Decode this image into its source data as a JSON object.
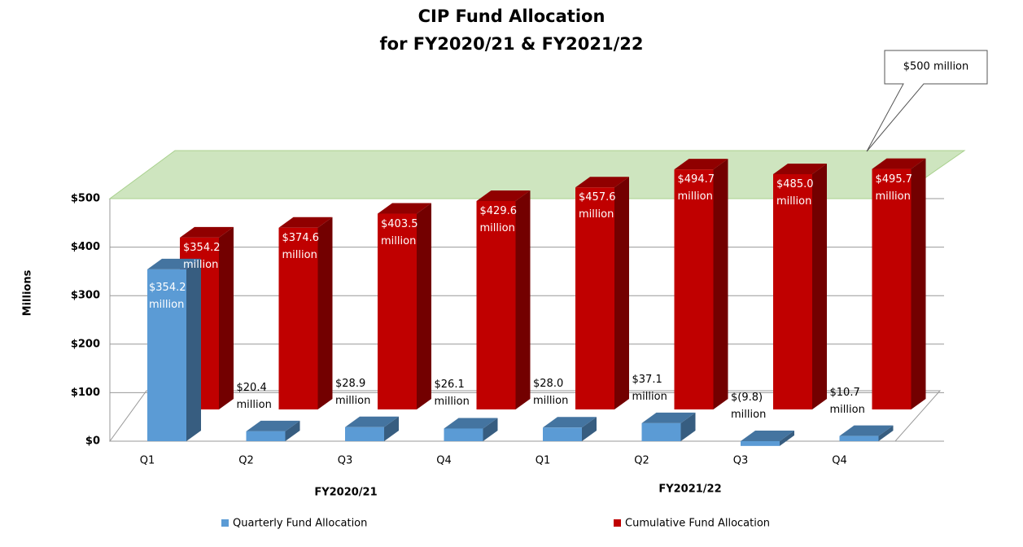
{
  "chart_data": {
    "type": "bar3d",
    "title": "CIP Fund Allocation",
    "subtitle": "for FY2020/21 & FY2021/22",
    "y_label": "Millions",
    "annotation": "$500 million",
    "categories": [
      "Q1",
      "Q2",
      "Q3",
      "Q4",
      "Q1",
      "Q2",
      "Q3",
      "Q4"
    ],
    "groups": [
      "FY2020/21",
      "FY2021/22"
    ],
    "series": [
      {
        "name": "Quarterly Fund Allocation",
        "color": "#5b9bd5",
        "values": [
          354.2,
          20.4,
          28.9,
          26.1,
          28.0,
          37.1,
          -9.8,
          10.7
        ],
        "value_labels": [
          "$354.2 million",
          "$20.4 million",
          "$28.9 million",
          "$26.1 million",
          "$28.0 million",
          "$37.1 million",
          "$(9.8) million",
          "$10.7 million"
        ]
      },
      {
        "name": "Cumulative Fund Allocation",
        "color": "#c00000",
        "values": [
          354.2,
          374.6,
          403.5,
          429.6,
          457.6,
          494.7,
          485.0,
          495.7
        ],
        "value_labels": [
          "$354.2 million",
          "$374.6 million",
          "$403.5 million",
          "$429.6 million",
          "$457.6 million",
          "$494.7 million",
          "$485.0 million",
          "$495.7 million"
        ]
      }
    ],
    "ylim": [
      0,
      500
    ],
    "yticks": [
      {
        "value": 0,
        "label": "$0"
      },
      {
        "value": 100,
        "label": "$100"
      },
      {
        "value": 200,
        "label": "$200"
      },
      {
        "value": 300,
        "label": "$300"
      },
      {
        "value": 400,
        "label": "$400"
      },
      {
        "value": 500,
        "label": "$500"
      }
    ],
    "grid": true
  }
}
